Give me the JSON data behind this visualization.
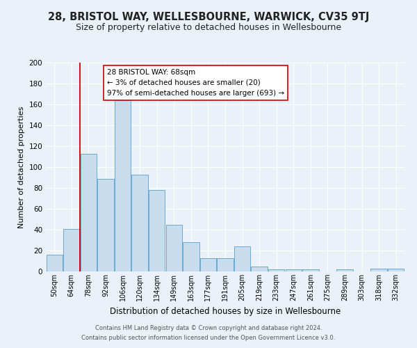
{
  "title": "28, BRISTOL WAY, WELLESBOURNE, WARWICK, CV35 9TJ",
  "subtitle": "Size of property relative to detached houses in Wellesbourne",
  "xlabel": "Distribution of detached houses by size in Wellesbourne",
  "ylabel": "Number of detached properties",
  "categories": [
    "50sqm",
    "64sqm",
    "78sqm",
    "92sqm",
    "106sqm",
    "120sqm",
    "134sqm",
    "149sqm",
    "163sqm",
    "177sqm",
    "191sqm",
    "205sqm",
    "219sqm",
    "233sqm",
    "247sqm",
    "261sqm",
    "275sqm",
    "289sqm",
    "303sqm",
    "318sqm",
    "332sqm"
  ],
  "values": [
    16,
    41,
    113,
    89,
    164,
    93,
    78,
    45,
    28,
    13,
    13,
    24,
    5,
    2,
    2,
    2,
    0,
    2,
    0,
    3,
    3
  ],
  "bar_color": "#c8dced",
  "bar_edge_color": "#6aaad4",
  "vline_color": "#cc0000",
  "ylim": [
    0,
    200
  ],
  "yticks": [
    0,
    20,
    40,
    60,
    80,
    100,
    120,
    140,
    160,
    180,
    200
  ],
  "annotation_text": "28 BRISTOL WAY: 68sqm\n← 3% of detached houses are smaller (20)\n97% of semi-detached houses are larger (693) →",
  "annotation_box_color": "#ffffff",
  "annotation_box_edge_color": "#cc0000",
  "footer1": "Contains HM Land Registry data © Crown copyright and database right 2024.",
  "footer2": "Contains public sector information licensed under the Open Government Licence v3.0.",
  "bg_color": "#eaf1f8",
  "plot_bg_color": "#eaf1f8",
  "title_fontsize": 10.5,
  "subtitle_fontsize": 9
}
